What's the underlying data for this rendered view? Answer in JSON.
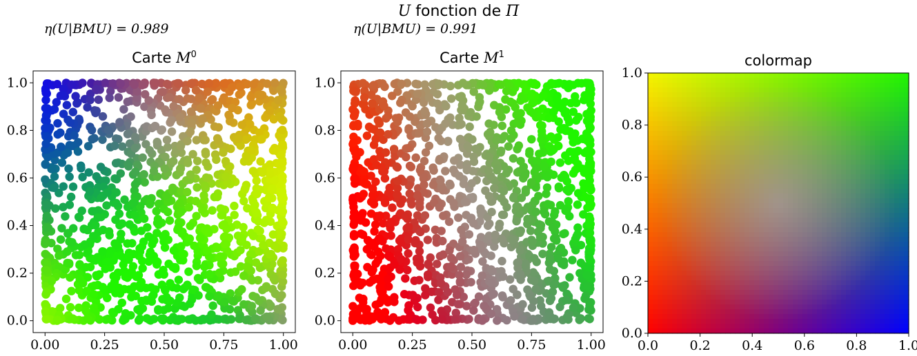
{
  "figure": {
    "suptitle": "U fonction de Π"
  },
  "chart_data": [
    {
      "type": "scatter",
      "title": "Carte M^0",
      "annotation": "η(U|BMU) = 0.989",
      "xlim": [
        -0.05,
        1.05
      ],
      "ylim": [
        -0.05,
        1.05
      ],
      "xticks": [
        "0.00",
        "0.25",
        "0.50",
        "0.75",
        "1.00"
      ],
      "yticks": [
        "0.0",
        "0.2",
        "0.4",
        "0.6",
        "0.8",
        "1.0"
      ],
      "grid": false,
      "n_points": 1400,
      "color_encoding": "point color = colormap(value) where value is U as a function of Π",
      "dominant_regions": [
        {
          "region": "top-left",
          "colors": [
            "yellow",
            "gray-beige",
            "lavender"
          ]
        },
        {
          "region": "top-right",
          "colors": [
            "green",
            "teal"
          ]
        },
        {
          "region": "left-middle",
          "colors": [
            "purple",
            "violet"
          ]
        },
        {
          "region": "center",
          "colors": [
            "blue",
            "orange"
          ]
        },
        {
          "region": "bottom",
          "colors": [
            "purple",
            "red",
            "blue"
          ]
        },
        {
          "region": "right",
          "colors": [
            "orange",
            "blue",
            "teal"
          ]
        }
      ]
    },
    {
      "type": "scatter",
      "title": "Carte M^1",
      "annotation": "η(U|BMU) = 0.991",
      "xlim": [
        -0.05,
        1.05
      ],
      "ylim": [
        -0.05,
        1.05
      ],
      "xticks": [
        "0.00",
        "0.25",
        "0.50",
        "0.75",
        "1.00"
      ],
      "yticks": [
        "0.0",
        "0.2",
        "0.4",
        "0.6",
        "0.8",
        "1.0"
      ],
      "grid": false,
      "n_points": 1400,
      "color_encoding": "point color = colormap(value) where value is U as a function of Π",
      "dominant_regions": [
        {
          "region": "top-left",
          "colors": [
            "blue"
          ]
        },
        {
          "region": "top-right",
          "colors": [
            "green",
            "teal"
          ]
        },
        {
          "region": "left",
          "colors": [
            "blue",
            "indigo"
          ]
        },
        {
          "region": "center",
          "colors": [
            "purple",
            "lavender",
            "orange"
          ]
        },
        {
          "region": "bottom-left",
          "colors": [
            "purple",
            "red"
          ]
        },
        {
          "region": "bottom-right",
          "colors": [
            "orange",
            "gray-beige"
          ]
        },
        {
          "region": "right",
          "colors": [
            "yellow-green",
            "orange"
          ]
        }
      ]
    },
    {
      "type": "heatmap",
      "title": "colormap",
      "xlim": [
        0.0,
        1.0
      ],
      "ylim": [
        0.0,
        1.0
      ],
      "xticks": [
        "0.0",
        "0.2",
        "0.4",
        "0.6",
        "0.8",
        "1.0"
      ],
      "yticks": [
        "0.0",
        "0.2",
        "0.4",
        "0.6",
        "0.8",
        "1.0"
      ],
      "corner_colors": {
        "top-left": "#f5f500",
        "top-right": "#20f500",
        "bottom-left": "#ff0000",
        "bottom-right": "#0000ff",
        "center": "#b8a8c8"
      }
    }
  ]
}
